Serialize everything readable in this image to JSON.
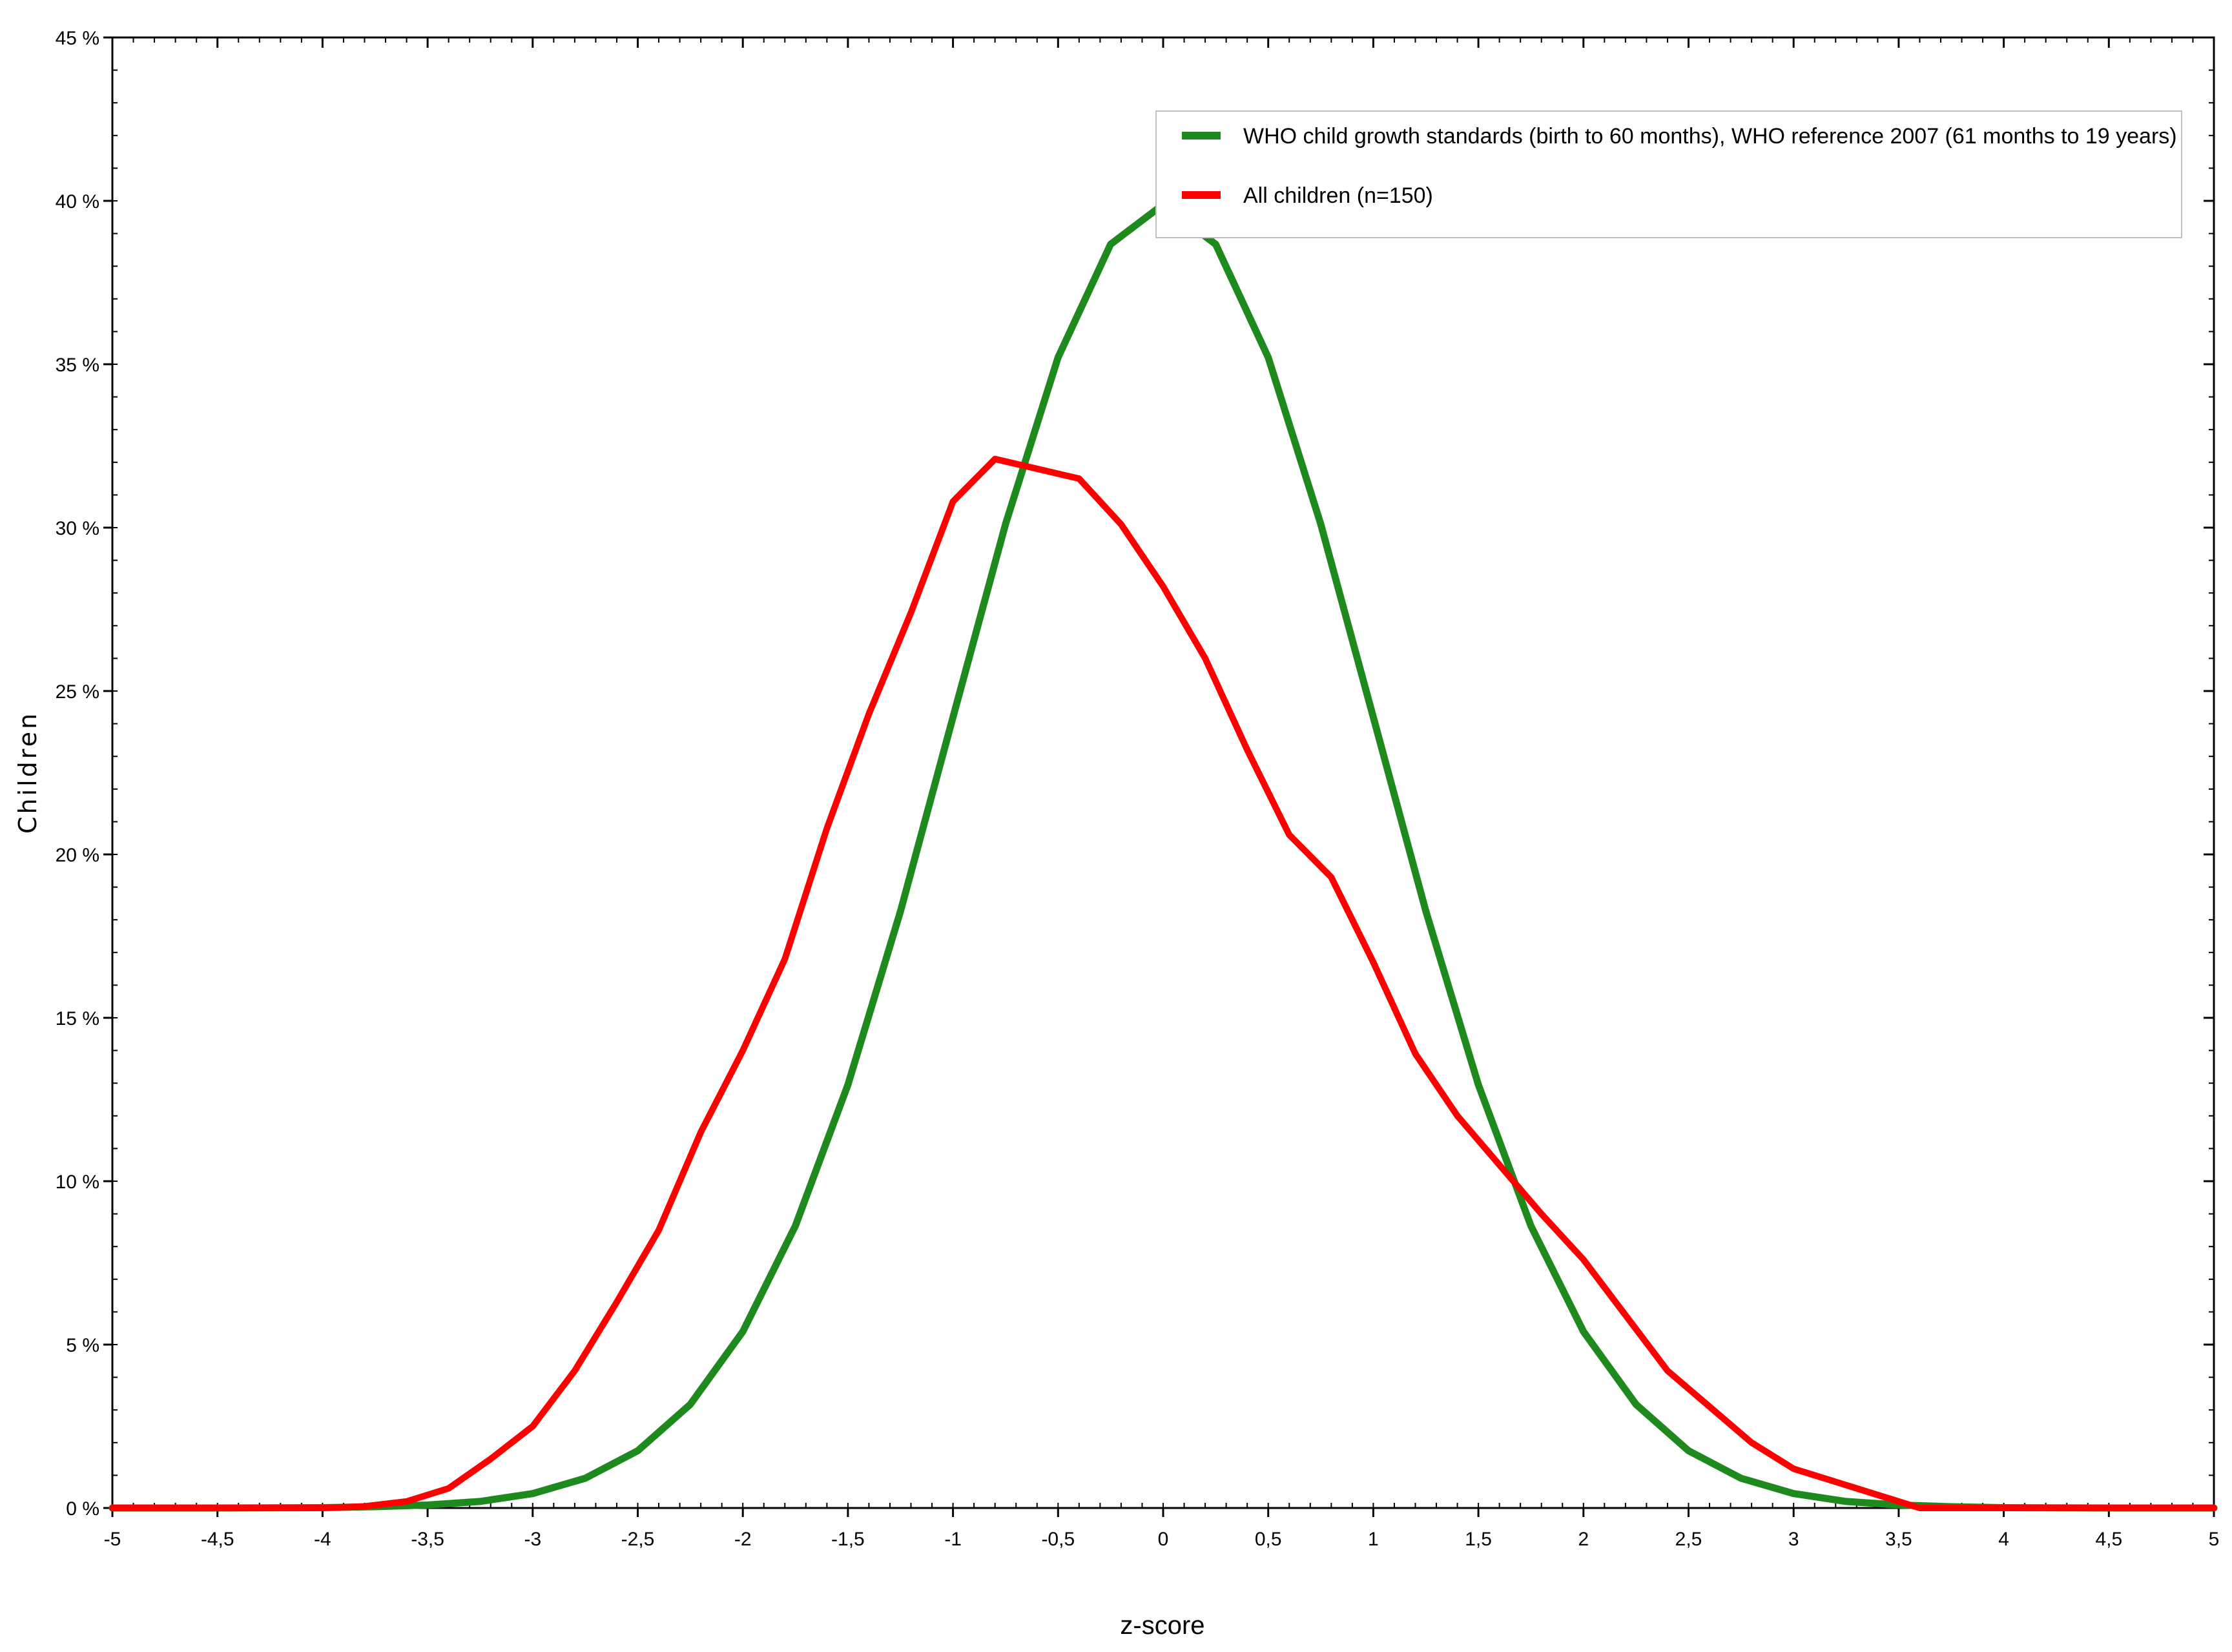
{
  "chart_data": {
    "type": "line",
    "title": "",
    "xlabel": "z-score",
    "ylabel": "Children",
    "xlim": [
      -5,
      5
    ],
    "ylim": [
      0,
      45
    ],
    "x_ticks": [
      -5,
      -4.5,
      -4,
      -3.5,
      -3,
      -2.5,
      -2,
      -1.5,
      -1,
      -0.5,
      0,
      0.5,
      1,
      1.5,
      2,
      2.5,
      3,
      3.5,
      4,
      4.5,
      5
    ],
    "x_tick_labels": [
      "-5",
      "-4,5",
      "-4",
      "-3,5",
      "-3",
      "-2,5",
      "-2",
      "-1,5",
      "-1",
      "-0,5",
      "0",
      "0,5",
      "1",
      "1,5",
      "2",
      "2,5",
      "3",
      "3,5",
      "4",
      "4,5",
      "5"
    ],
    "y_ticks": [
      0,
      5,
      10,
      15,
      20,
      25,
      30,
      35,
      40,
      45
    ],
    "y_tick_labels": [
      "0 %",
      "5 %",
      "10 %",
      "15 %",
      "20 %",
      "25 %",
      "30 %",
      "35 %",
      "40 %",
      "45 %"
    ],
    "grid": false,
    "legend_position": "top-right",
    "series": [
      {
        "name": "WHO child growth standards (birth to 60 months), WHO reference 2007 (61 months to 19 years)",
        "color": "#1e8a1e",
        "x": [
          -5,
          -4.5,
          -4,
          -3.75,
          -3.5,
          -3.25,
          -3,
          -2.75,
          -2.5,
          -2.25,
          -2,
          -1.75,
          -1.5,
          -1.25,
          -1,
          -0.75,
          -0.5,
          -0.25,
          0,
          0.25,
          0.5,
          0.75,
          1,
          1.25,
          1.5,
          1.75,
          2,
          2.25,
          2.5,
          2.75,
          3,
          3.25,
          3.5,
          3.75,
          4,
          4.5,
          5
        ],
        "values": [
          0,
          0,
          0.01,
          0.04,
          0.09,
          0.2,
          0.44,
          0.91,
          1.75,
          3.17,
          5.4,
          8.63,
          12.95,
          18.26,
          24.2,
          30.11,
          35.21,
          38.67,
          39.89,
          38.67,
          35.21,
          30.11,
          24.2,
          18.26,
          12.95,
          8.63,
          5.4,
          3.17,
          1.75,
          0.91,
          0.44,
          0.2,
          0.09,
          0.04,
          0.01,
          0,
          0
        ]
      },
      {
        "name": "All children (n=150)",
        "color": "#ff0000",
        "x": [
          -5,
          -4.5,
          -4,
          -3.8,
          -3.6,
          -3.4,
          -3.2,
          -3,
          -2.8,
          -2.6,
          -2.4,
          -2.2,
          -2,
          -1.8,
          -1.6,
          -1.4,
          -1.2,
          -1,
          -0.8,
          -0.6,
          -0.4,
          -0.2,
          0,
          0.2,
          0.4,
          0.6,
          0.8,
          1,
          1.2,
          1.4,
          1.6,
          1.8,
          2,
          2.2,
          2.4,
          2.6,
          2.8,
          3,
          3.2,
          3.4,
          3.6,
          3.8,
          4,
          4.5,
          5
        ],
        "values": [
          0,
          0,
          0,
          0.05,
          0.2,
          0.6,
          1.5,
          2.5,
          4.2,
          6.3,
          8.5,
          11.5,
          14,
          16.8,
          20.8,
          24.3,
          27.4,
          30.8,
          32.1,
          31.8,
          31.5,
          30.1,
          28.2,
          26,
          23.2,
          20.6,
          19.3,
          16.7,
          13.9,
          12,
          10.5,
          9,
          7.6,
          5.9,
          4.2,
          3.1,
          2,
          1.2,
          0.8,
          0.4,
          0,
          0,
          0,
          0,
          0
        ]
      }
    ]
  }
}
